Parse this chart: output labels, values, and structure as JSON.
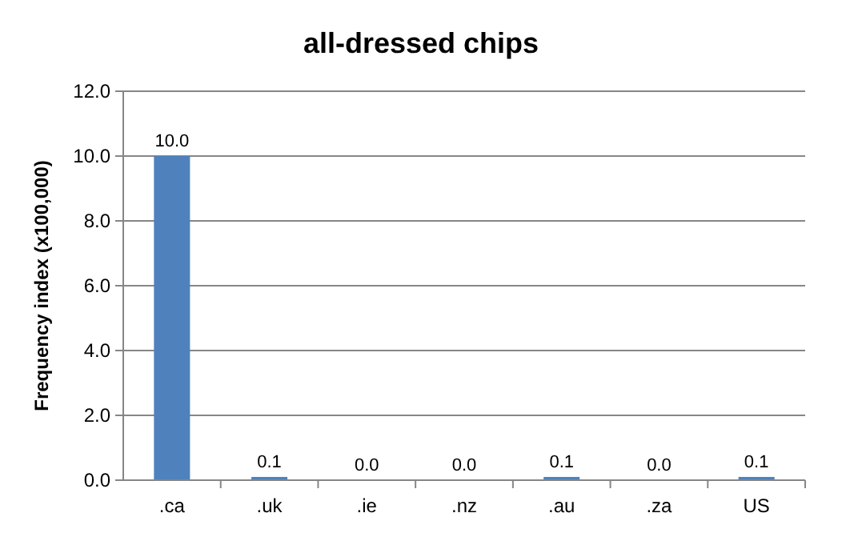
{
  "chart_data": {
    "type": "bar",
    "title": "all-dressed chips",
    "ylabel": "Frequency index (x100,000)",
    "categories": [
      ".ca",
      ".uk",
      ".ie",
      ".nz",
      ".au",
      ".za",
      "US"
    ],
    "values": [
      10,
      0.1,
      0,
      0,
      0.1,
      0,
      0.1
    ],
    "value_labels": [
      "10.0",
      "0.1",
      "0.0",
      "0.0",
      "0.1",
      "0.0",
      "0.1"
    ],
    "color": "#4f81bd",
    "ylim": [
      0,
      12
    ],
    "yticks": [
      {
        "value": 0,
        "label": "0.0"
      },
      {
        "value": 2,
        "label": "2.0"
      },
      {
        "value": 4,
        "label": "4.0"
      },
      {
        "value": 6,
        "label": "6.0"
      },
      {
        "value": 8,
        "label": "8.0"
      },
      {
        "value": 10,
        "label": "10.0"
      },
      {
        "value": 12,
        "label": "12.0"
      }
    ],
    "grid": "y"
  }
}
